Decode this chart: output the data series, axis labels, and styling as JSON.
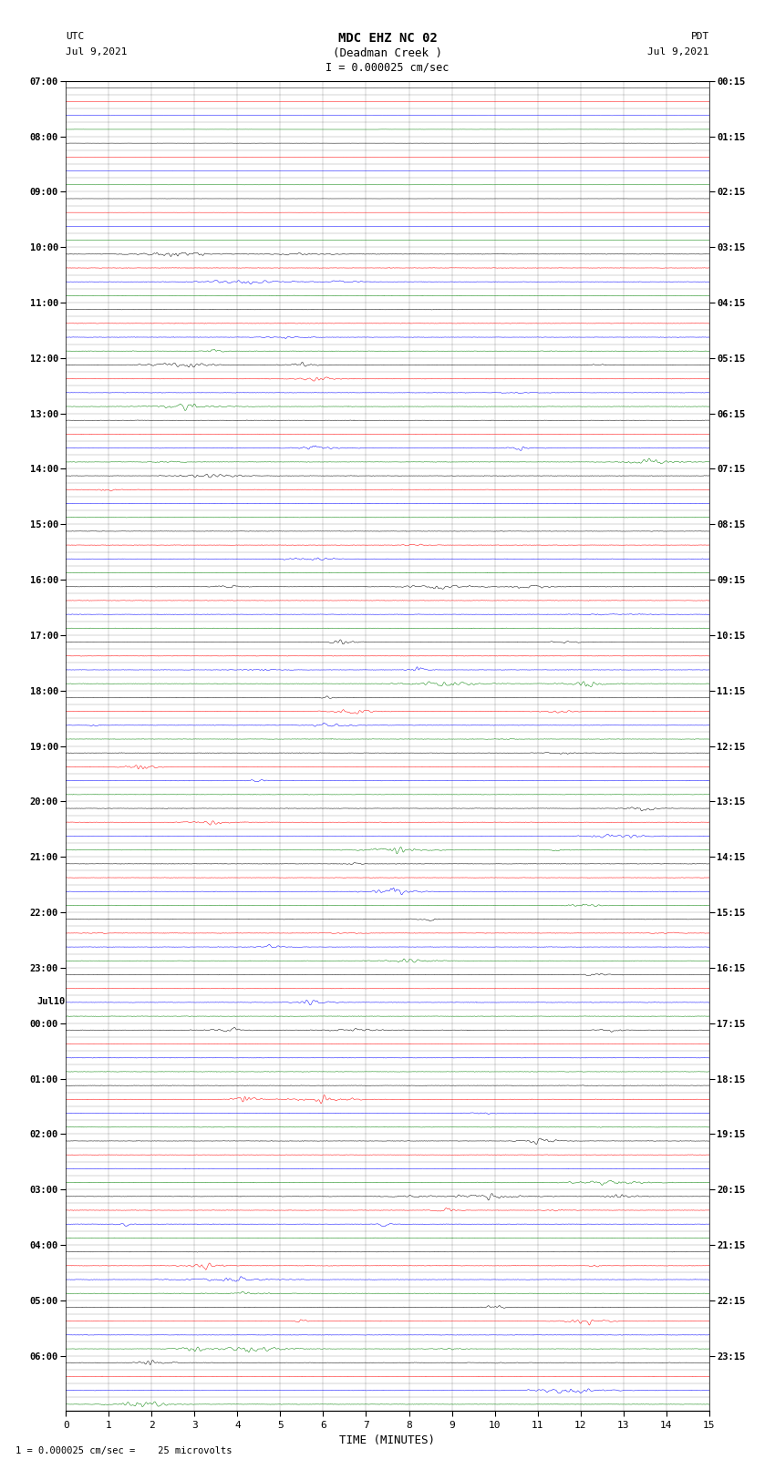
{
  "title_line1": "MDC EHZ NC 02",
  "title_line2": "(Deadman Creek )",
  "title_line3": "I = 0.000025 cm/sec",
  "left_label": "UTC",
  "left_date": "Jul 9,2021",
  "right_label": "PDT",
  "right_date": "Jul 9,2021",
  "xlabel": "TIME (MINUTES)",
  "footer": "1 = 0.000025 cm/sec =    25 microvolts",
  "xlim": [
    0,
    15
  ],
  "xticks": [
    0,
    1,
    2,
    3,
    4,
    5,
    6,
    7,
    8,
    9,
    10,
    11,
    12,
    13,
    14,
    15
  ],
  "utc_hour_labels": [
    "07:00",
    "08:00",
    "09:00",
    "10:00",
    "11:00",
    "12:00",
    "13:00",
    "14:00",
    "15:00",
    "16:00",
    "17:00",
    "18:00",
    "19:00",
    "20:00",
    "21:00",
    "22:00",
    "23:00",
    "Jul10\n00:00",
    "01:00",
    "02:00",
    "03:00",
    "04:00",
    "05:00",
    "06:00"
  ],
  "pdt_hour_labels": [
    "00:15",
    "01:15",
    "02:15",
    "03:15",
    "04:15",
    "05:15",
    "06:15",
    "07:15",
    "08:15",
    "09:15",
    "10:15",
    "11:15",
    "12:15",
    "13:15",
    "14:15",
    "15:15",
    "16:15",
    "17:15",
    "18:15",
    "19:15",
    "20:15",
    "21:15",
    "22:15",
    "23:15"
  ],
  "num_hours": 24,
  "traces_per_hour": 4,
  "bg_color": "white",
  "trace_color_sequence": [
    "black",
    "red",
    "blue",
    "green"
  ],
  "quiet_hours": [
    0,
    1,
    2
  ],
  "seed": 12345
}
